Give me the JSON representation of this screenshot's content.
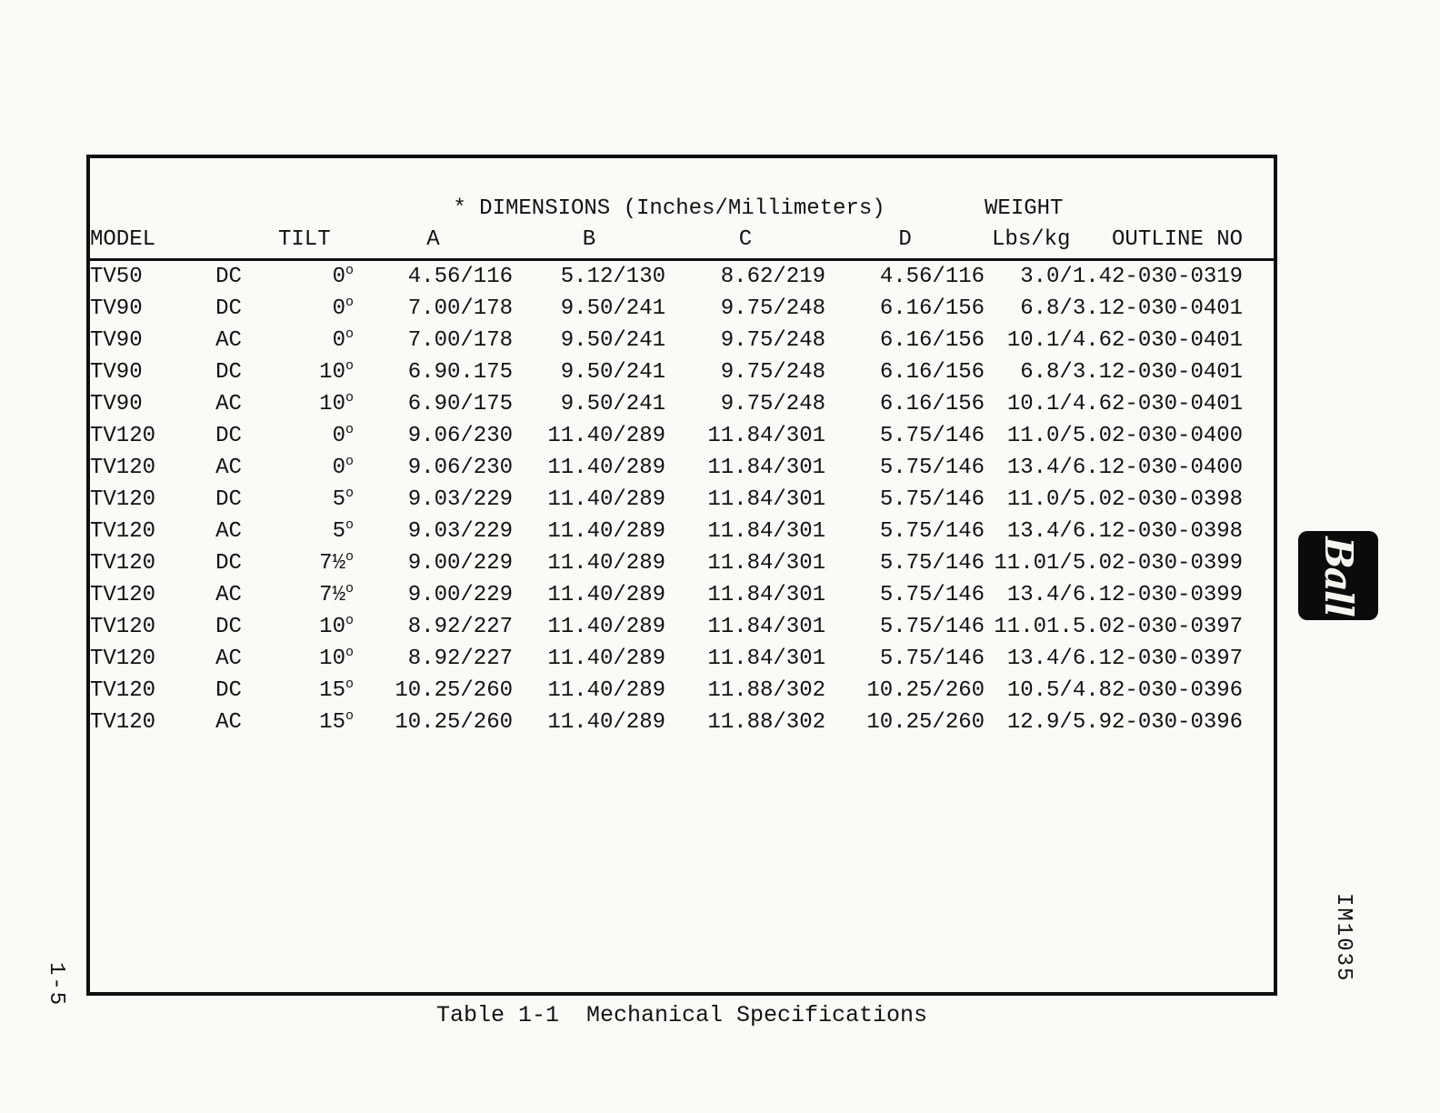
{
  "page": {
    "page_number": "1-5",
    "doc_code": "IM1035",
    "caption": "Table 1-1  Mechanical Specifications",
    "logo_text": "Ball"
  },
  "table": {
    "dimensions_title": "* DIMENSIONS (Inches/Millimeters)",
    "weight_title": "WEIGHT",
    "degree_symbol": "o",
    "columns": {
      "model": "MODEL",
      "tilt": "TILT",
      "a": "A",
      "b": "B",
      "c": "C",
      "d": "D",
      "weight": "Lbs/kg",
      "outline": "OUTLINE NO"
    },
    "rows": [
      {
        "model": "TV50",
        "power": "DC",
        "tilt": "0",
        "a": "4.56/116",
        "b": "5.12/130",
        "c": "8.62/219",
        "d": "4.56/116",
        "weight": "3.0/1.4",
        "outline": "2-030-0319"
      },
      {
        "model": "TV90",
        "power": "DC",
        "tilt": "0",
        "a": "7.00/178",
        "b": "9.50/241",
        "c": "9.75/248",
        "d": "6.16/156",
        "weight": "6.8/3.1",
        "outline": "2-030-0401"
      },
      {
        "model": "TV90",
        "power": "AC",
        "tilt": "0",
        "a": "7.00/178",
        "b": "9.50/241",
        "c": "9.75/248",
        "d": "6.16/156",
        "weight": "10.1/4.6",
        "outline": "2-030-0401"
      },
      {
        "model": "TV90",
        "power": "DC",
        "tilt": "10",
        "a": "6.90.175",
        "b": "9.50/241",
        "c": "9.75/248",
        "d": "6.16/156",
        "weight": "6.8/3.1",
        "outline": "2-030-0401"
      },
      {
        "model": "TV90",
        "power": "AC",
        "tilt": "10",
        "a": "6.90/175",
        "b": "9.50/241",
        "c": "9.75/248",
        "d": "6.16/156",
        "weight": "10.1/4.6",
        "outline": "2-030-0401"
      },
      {
        "model": "TV120",
        "power": "DC",
        "tilt": "0",
        "a": "9.06/230",
        "b": "11.40/289",
        "c": "11.84/301",
        "d": "5.75/146",
        "weight": "11.0/5.0",
        "outline": "2-030-0400"
      },
      {
        "model": "TV120",
        "power": "AC",
        "tilt": "0",
        "a": "9.06/230",
        "b": "11.40/289",
        "c": "11.84/301",
        "d": "5.75/146",
        "weight": "13.4/6.1",
        "outline": "2-030-0400"
      },
      {
        "model": "TV120",
        "power": "DC",
        "tilt": "5",
        "a": "9.03/229",
        "b": "11.40/289",
        "c": "11.84/301",
        "d": "5.75/146",
        "weight": "11.0/5.0",
        "outline": "2-030-0398"
      },
      {
        "model": "TV120",
        "power": "AC",
        "tilt": "5",
        "a": "9.03/229",
        "b": "11.40/289",
        "c": "11.84/301",
        "d": "5.75/146",
        "weight": "13.4/6.1",
        "outline": "2-030-0398"
      },
      {
        "model": "TV120",
        "power": "DC",
        "tilt": "7½",
        "a": "9.00/229",
        "b": "11.40/289",
        "c": "11.84/301",
        "d": "5.75/146",
        "weight": "11.01/5.0",
        "outline": "2-030-0399"
      },
      {
        "model": "TV120",
        "power": "AC",
        "tilt": "7½",
        "a": "9.00/229",
        "b": "11.40/289",
        "c": "11.84/301",
        "d": "5.75/146",
        "weight": "13.4/6.1",
        "outline": "2-030-0399"
      },
      {
        "model": "TV120",
        "power": "DC",
        "tilt": "10",
        "a": "8.92/227",
        "b": "11.40/289",
        "c": "11.84/301",
        "d": "5.75/146",
        "weight": "11.01.5.0",
        "outline": "2-030-0397"
      },
      {
        "model": "TV120",
        "power": "AC",
        "tilt": "10",
        "a": "8.92/227",
        "b": "11.40/289",
        "c": "11.84/301",
        "d": "5.75/146",
        "weight": "13.4/6.1",
        "outline": "2-030-0397"
      },
      {
        "model": "TV120",
        "power": "DC",
        "tilt": "15",
        "a": "10.25/260",
        "b": "11.40/289",
        "c": "11.88/302",
        "d": "10.25/260",
        "weight": "10.5/4.8",
        "outline": "2-030-0396"
      },
      {
        "model": "TV120",
        "power": "AC",
        "tilt": "15",
        "a": "10.25/260",
        "b": "11.40/289",
        "c": "11.88/302",
        "d": "10.25/260",
        "weight": "12.9/5.9",
        "outline": "2-030-0396"
      }
    ]
  }
}
